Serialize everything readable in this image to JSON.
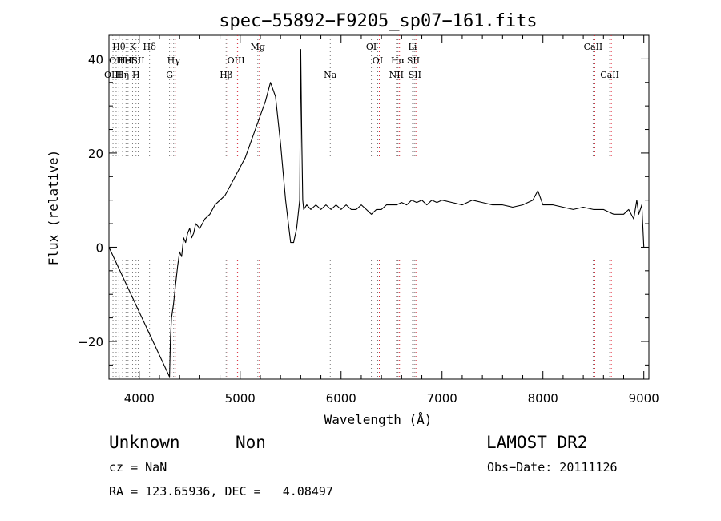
{
  "chart_data": {
    "type": "line",
    "title": "spec−55892−F9205_sp07−161.fits",
    "xlabel": "Wavelength (Å)",
    "ylabel": "Flux (relative)",
    "xlim": [
      3700,
      9050
    ],
    "ylim": [
      -28,
      45
    ],
    "x_ticks": [
      4000,
      5000,
      6000,
      7000,
      8000,
      9000
    ],
    "y_ticks": [
      -20,
      0,
      20,
      40
    ],
    "x_tick_labels": [
      "4000",
      "5000",
      "6000",
      "7000",
      "8000",
      "9000"
    ],
    "y_tick_labels": [
      "−20",
      "0",
      "20",
      "40"
    ],
    "grid": false,
    "legend": "none",
    "series": [
      {
        "color": "#000000",
        "x": [
          3700,
          4300,
          4310,
          4320,
          4340,
          4360,
          4380,
          4400,
          4420,
          4440,
          4460,
          4480,
          4500,
          4520,
          4540,
          4560,
          4600,
          4650,
          4700,
          4750,
          4800,
          4850,
          4900,
          4950,
          5000,
          5050,
          5100,
          5150,
          5200,
          5250,
          5300,
          5350,
          5400,
          5450,
          5500,
          5530,
          5560,
          5590,
          5600,
          5610,
          5620,
          5630,
          5660,
          5700,
          5750,
          5800,
          5850,
          5900,
          5950,
          6000,
          6050,
          6100,
          6150,
          6200,
          6250,
          6300,
          6350,
          6400,
          6450,
          6500,
          6550,
          6600,
          6650,
          6700,
          6750,
          6800,
          6850,
          6900,
          6950,
          7000,
          7100,
          7200,
          7300,
          7400,
          7500,
          7600,
          7700,
          7800,
          7900,
          7950,
          8000,
          8100,
          8200,
          8300,
          8400,
          8500,
          8600,
          8700,
          8800,
          8850,
          8900,
          8930,
          8950,
          8980,
          9000
        ],
        "y": [
          0,
          -27.5,
          -19,
          -15,
          -12,
          -8,
          -4,
          -1,
          -2,
          2,
          1,
          3,
          4,
          2,
          3,
          5,
          4,
          6,
          7,
          9,
          10,
          11,
          13,
          15,
          17,
          19,
          22,
          25,
          28,
          31,
          35,
          32,
          22,
          10,
          1,
          1,
          4,
          10,
          42,
          24,
          10,
          8,
          9,
          8,
          9,
          8,
          9,
          8,
          9,
          8,
          9,
          8,
          8,
          9,
          8,
          7,
          8,
          8,
          9,
          9,
          9,
          9.5,
          9,
          10,
          9.5,
          10,
          9,
          10,
          9.5,
          10,
          9.5,
          9,
          10,
          9.5,
          9,
          9,
          8.5,
          9,
          10,
          12,
          9,
          9,
          8.5,
          8,
          8.5,
          8,
          8,
          7,
          7,
          8,
          6,
          10,
          7,
          9,
          0
        ]
      }
    ],
    "lines": {
      "black": [
        {
          "x": 3740,
          "labels": [
            {
              "text": "OIII",
              "row": 2
            }
          ]
        },
        {
          "x": 3771,
          "labels": [
            {
              "text": "OII",
              "row": 1
            }
          ]
        },
        {
          "x": 3798,
          "labels": [
            {
              "text": "Hθ",
              "row": 0
            }
          ]
        },
        {
          "x": 3835,
          "labels": [
            {
              "text": "Hη",
              "row": 2
            }
          ]
        },
        {
          "x": 3869,
          "labels": [
            {
              "text": "HeI",
              "row": 1
            }
          ]
        },
        {
          "x": 3889,
          "labels": [
            {
              "text": "H",
              "row": 1
            }
          ]
        },
        {
          "x": 3934,
          "labels": [
            {
              "text": "K",
              "row": 0
            }
          ]
        },
        {
          "x": 3968,
          "labels": [
            {
              "text": "H",
              "row": 2
            }
          ]
        },
        {
          "x": 3990,
          "labels": [
            {
              "text": "SII",
              "row": 1
            }
          ]
        },
        {
          "x": 4102,
          "labels": [
            {
              "text": "Hδ",
              "row": 0
            }
          ]
        },
        {
          "x": 4300,
          "labels": [
            {
              "text": "G",
              "row": 2
            }
          ]
        },
        {
          "x": 4341,
          "labels": [
            {
              "text": "Hγ",
              "row": 1
            }
          ]
        },
        {
          "x": 4861,
          "labels": [
            {
              "text": "Hβ",
              "row": 2
            }
          ]
        },
        {
          "x": 4959,
          "labels": [
            {
              "text": "OIII",
              "row": 1
            }
          ]
        },
        {
          "x": 5175,
          "labels": [
            {
              "text": "Mg",
              "row": 0
            }
          ]
        },
        {
          "x": 5893,
          "labels": [
            {
              "text": "Na",
              "row": 2
            }
          ]
        },
        {
          "x": 6300,
          "labels": [
            {
              "text": "OI",
              "row": 0
            }
          ]
        },
        {
          "x": 6363,
          "labels": [
            {
              "text": "OI",
              "row": 1
            }
          ]
        },
        {
          "x": 6548,
          "labels": [
            {
              "text": "NII",
              "row": 2
            }
          ]
        },
        {
          "x": 6563,
          "labels": [
            {
              "text": "Hα",
              "row": 1
            }
          ]
        },
        {
          "x": 6708,
          "labels": [
            {
              "text": "Li",
              "row": 0
            }
          ]
        },
        {
          "x": 6716,
          "labels": [
            {
              "text": "SII",
              "row": 1
            }
          ]
        },
        {
          "x": 6731,
          "labels": [
            {
              "text": "SII",
              "row": 2
            }
          ]
        },
        {
          "x": 8498,
          "labels": [
            {
              "text": "CaII",
              "row": 0
            }
          ]
        },
        {
          "x": 8662,
          "labels": [
            {
              "text": "CaII",
              "row": 2
            }
          ]
        }
      ],
      "red": [
        4300,
        4341,
        4861,
        4959,
        5175,
        6300,
        6363,
        6548,
        6563,
        6716,
        6731,
        8498,
        8662
      ],
      "dotted_only": [
        3740,
        3771,
        3798,
        3835,
        3869,
        3889,
        3934,
        3968,
        3990,
        4102,
        5893,
        6708
      ]
    }
  },
  "info": {
    "class_label": "Unknown",
    "subclass_label": "Non",
    "survey": "LAMOST DR2",
    "cz": "cz = NaN",
    "obs_date": "Obs−Date: 20111126",
    "radec": "RA = 123.65936, DEC =   4.08497"
  }
}
